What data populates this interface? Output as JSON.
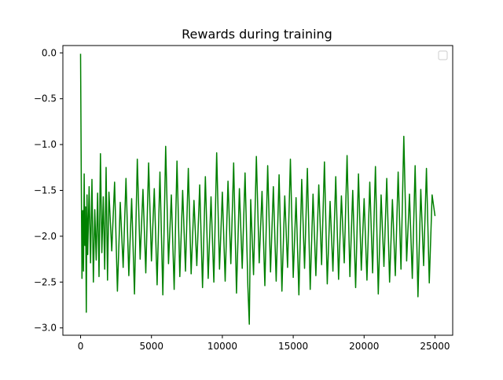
{
  "chart_data": {
    "type": "line",
    "title": "Rewards during training",
    "xlabel": "",
    "ylabel": "",
    "xlim": [
      -1250,
      26250
    ],
    "ylim": [
      -3.08,
      0.08
    ],
    "xticks": [
      0,
      5000,
      10000,
      15000,
      20000,
      25000
    ],
    "xtick_labels": [
      "0",
      "5000",
      "10000",
      "15000",
      "20000",
      "25000"
    ],
    "yticks": [
      0.0,
      -0.5,
      -1.0,
      -1.5,
      -2.0,
      -2.5,
      -3.0
    ],
    "ytick_labels": [
      "0.0",
      "−0.5",
      "−1.0",
      "−1.5",
      "−2.0",
      "−2.5",
      "−3.0"
    ],
    "grid": false,
    "legend": {
      "placement": "top-right",
      "entries": []
    },
    "series": [
      {
        "color": "#008000",
        "n_points": 25000,
        "points": [
          [
            0,
            -0.01
          ],
          [
            50,
            -1.35
          ],
          [
            100,
            -2.46
          ],
          [
            150,
            -1.72
          ],
          [
            200,
            -2.38
          ],
          [
            250,
            -1.32
          ],
          [
            300,
            -2.1
          ],
          [
            350,
            -1.68
          ],
          [
            400,
            -2.83
          ],
          [
            450,
            -1.55
          ],
          [
            500,
            -2.2
          ],
          [
            600,
            -1.46
          ],
          [
            700,
            -2.29
          ],
          [
            800,
            -1.38
          ],
          [
            900,
            -2.5
          ],
          [
            1000,
            -1.71
          ],
          [
            1100,
            -2.26
          ],
          [
            1200,
            -1.53
          ],
          [
            1300,
            -2.44
          ],
          [
            1400,
            -1.1
          ],
          [
            1500,
            -2.18
          ],
          [
            1600,
            -1.57
          ],
          [
            1700,
            -2.36
          ],
          [
            1800,
            -1.25
          ],
          [
            1900,
            -2.48
          ],
          [
            2000,
            -1.52
          ],
          [
            2200,
            -2.16
          ],
          [
            2400,
            -1.41
          ],
          [
            2600,
            -2.6
          ],
          [
            2800,
            -1.63
          ],
          [
            3000,
            -2.34
          ],
          [
            3200,
            -1.37
          ],
          [
            3400,
            -2.43
          ],
          [
            3600,
            -1.59
          ],
          [
            3800,
            -2.63
          ],
          [
            4000,
            -1.16
          ],
          [
            4200,
            -2.25
          ],
          [
            4400,
            -1.49
          ],
          [
            4600,
            -2.4
          ],
          [
            4800,
            -1.2
          ],
          [
            5000,
            -2.27
          ],
          [
            5200,
            -1.48
          ],
          [
            5400,
            -2.53
          ],
          [
            5600,
            -1.3
          ],
          [
            5800,
            -2.64
          ],
          [
            6000,
            -1.02
          ],
          [
            6200,
            -2.3
          ],
          [
            6400,
            -1.55
          ],
          [
            6600,
            -2.58
          ],
          [
            6800,
            -1.18
          ],
          [
            7000,
            -2.44
          ],
          [
            7200,
            -1.5
          ],
          [
            7400,
            -2.38
          ],
          [
            7600,
            -1.26
          ],
          [
            7800,
            -2.41
          ],
          [
            8000,
            -1.61
          ],
          [
            8200,
            -2.32
          ],
          [
            8400,
            -1.44
          ],
          [
            8600,
            -2.56
          ],
          [
            8800,
            -1.35
          ],
          [
            9000,
            -2.46
          ],
          [
            9200,
            -1.57
          ],
          [
            9400,
            -2.5
          ],
          [
            9600,
            -1.09
          ],
          [
            9800,
            -2.36
          ],
          [
            10000,
            -1.52
          ],
          [
            10200,
            -2.49
          ],
          [
            10400,
            -1.4
          ],
          [
            10600,
            -2.3
          ],
          [
            10800,
            -1.2
          ],
          [
            11000,
            -2.62
          ],
          [
            11200,
            -1.48
          ],
          [
            11400,
            -2.35
          ],
          [
            11600,
            -1.31
          ],
          [
            11800,
            -2.55
          ],
          [
            11900,
            -2.96
          ],
          [
            12000,
            -1.6
          ],
          [
            12200,
            -2.42
          ],
          [
            12400,
            -1.13
          ],
          [
            12600,
            -2.29
          ],
          [
            12800,
            -1.51
          ],
          [
            13000,
            -2.54
          ],
          [
            13200,
            -1.23
          ],
          [
            13400,
            -2.39
          ],
          [
            13600,
            -1.46
          ],
          [
            13800,
            -2.49
          ],
          [
            14000,
            -1.33
          ],
          [
            14200,
            -2.6
          ],
          [
            14400,
            -1.56
          ],
          [
            14600,
            -2.34
          ],
          [
            14800,
            -1.16
          ],
          [
            15000,
            -2.45
          ],
          [
            15200,
            -1.58
          ],
          [
            15400,
            -2.64
          ],
          [
            15600,
            -1.38
          ],
          [
            15800,
            -2.35
          ],
          [
            16000,
            -1.26
          ],
          [
            16200,
            -2.58
          ],
          [
            16400,
            -1.54
          ],
          [
            16600,
            -2.43
          ],
          [
            16800,
            -1.44
          ],
          [
            17000,
            -2.31
          ],
          [
            17200,
            -1.19
          ],
          [
            17400,
            -2.52
          ],
          [
            17600,
            -1.62
          ],
          [
            17800,
            -2.38
          ],
          [
            18000,
            -1.35
          ],
          [
            18200,
            -2.47
          ],
          [
            18400,
            -1.56
          ],
          [
            18600,
            -2.29
          ],
          [
            18800,
            -1.12
          ],
          [
            19000,
            -2.44
          ],
          [
            19200,
            -1.5
          ],
          [
            19400,
            -2.56
          ],
          [
            19600,
            -1.32
          ],
          [
            19800,
            -2.37
          ],
          [
            20000,
            -1.59
          ],
          [
            20200,
            -2.48
          ],
          [
            20400,
            -1.41
          ],
          [
            20600,
            -2.4
          ],
          [
            20800,
            -1.24
          ],
          [
            21000,
            -2.63
          ],
          [
            21200,
            -1.55
          ],
          [
            21400,
            -2.33
          ],
          [
            21600,
            -1.37
          ],
          [
            21800,
            -2.5
          ],
          [
            22000,
            -1.6
          ],
          [
            22200,
            -2.43
          ],
          [
            22400,
            -1.3
          ],
          [
            22600,
            -2.36
          ],
          [
            22800,
            -0.91
          ],
          [
            23000,
            -2.27
          ],
          [
            23200,
            -1.54
          ],
          [
            23400,
            -2.46
          ],
          [
            23600,
            -1.23
          ],
          [
            23800,
            -2.66
          ],
          [
            24000,
            -1.49
          ],
          [
            24200,
            -2.32
          ],
          [
            24400,
            -1.26
          ],
          [
            24600,
            -2.51
          ],
          [
            24800,
            -1.55
          ],
          [
            25000,
            -1.78
          ]
        ]
      }
    ]
  }
}
